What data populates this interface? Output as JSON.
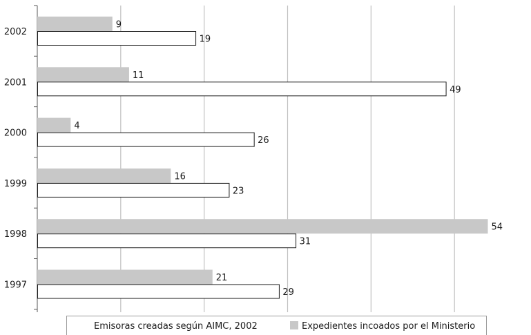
{
  "chart_data": {
    "type": "bar",
    "orientation": "horizontal",
    "categories": [
      "2002",
      "2001",
      "2000",
      "1999",
      "1998",
      "1997"
    ],
    "series": [
      {
        "name": "Expedientes incoados por el Ministerio",
        "values": [
          9,
          11,
          4,
          16,
          54,
          21
        ],
        "fill": "#c8c8c8",
        "stroke": "none"
      },
      {
        "name": "Emisoras creadas según AIMC, 2002",
        "values": [
          19,
          49,
          26,
          23,
          31,
          29
        ],
        "fill": "#ffffff",
        "stroke": "#1a1a1a"
      }
    ],
    "xlim": [
      0,
      60
    ],
    "x_gridlines": [
      10,
      20,
      30,
      40,
      50
    ],
    "grid": true,
    "x_tick_labels_shown": false,
    "data_labels": true,
    "legend": {
      "position": "bottom",
      "items": [
        {
          "label": "Emisoras creadas según AIMC, 2002",
          "swatch": "none"
        },
        {
          "label": "Expedientes incoados por el Ministerio",
          "swatch": "#c8c8c8"
        }
      ]
    },
    "colors": {
      "grid": "#c0c0c0",
      "axis": "#555555",
      "text": "#1a1a1a"
    }
  }
}
